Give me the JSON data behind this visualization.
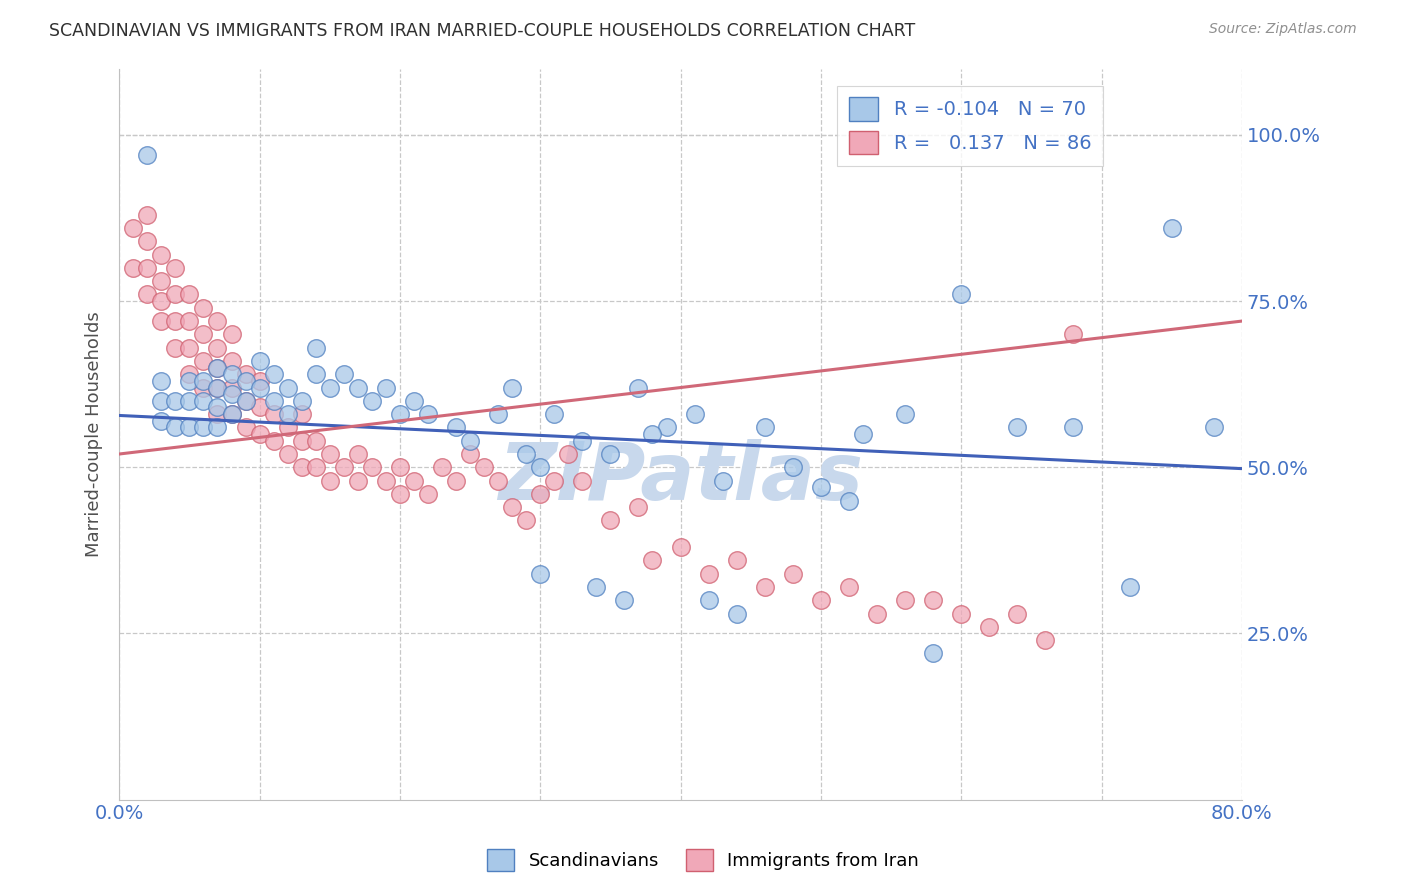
{
  "title": "SCANDINAVIAN VS IMMIGRANTS FROM IRAN MARRIED-COUPLE HOUSEHOLDS CORRELATION CHART",
  "source": "Source: ZipAtlas.com",
  "ylabel": "Married-couple Households",
  "ytick_labels": [
    "25.0%",
    "50.0%",
    "75.0%",
    "100.0%"
  ],
  "ytick_values": [
    0.25,
    0.5,
    0.75,
    1.0
  ],
  "blue_color": "#A8C8E8",
  "pink_color": "#F0A8B8",
  "blue_edge_color": "#5080C0",
  "pink_edge_color": "#D06070",
  "blue_line_color": "#4060B8",
  "pink_line_color": "#D06878",
  "title_color": "#303030",
  "source_color": "#909090",
  "axis_label_color": "#4472C4",
  "watermark_color": "#C8D8EC",
  "xmin": 0.0,
  "xmax": 0.8,
  "ymin": 0.0,
  "ymax": 1.1,
  "blue_line_x0": 0.0,
  "blue_line_y0": 0.578,
  "blue_line_x1": 0.8,
  "blue_line_y1": 0.498,
  "pink_line_x0": 0.0,
  "pink_line_y0": 0.52,
  "pink_line_x1": 0.8,
  "pink_line_y1": 0.72,
  "blue_scatter_x": [
    0.02,
    0.03,
    0.03,
    0.03,
    0.04,
    0.04,
    0.05,
    0.05,
    0.05,
    0.06,
    0.06,
    0.06,
    0.07,
    0.07,
    0.07,
    0.07,
    0.08,
    0.08,
    0.08,
    0.09,
    0.09,
    0.1,
    0.1,
    0.11,
    0.11,
    0.12,
    0.12,
    0.13,
    0.14,
    0.14,
    0.15,
    0.16,
    0.17,
    0.18,
    0.19,
    0.2,
    0.21,
    0.22,
    0.24,
    0.25,
    0.27,
    0.28,
    0.29,
    0.3,
    0.31,
    0.33,
    0.35,
    0.37,
    0.39,
    0.41,
    0.43,
    0.46,
    0.48,
    0.5,
    0.53,
    0.56,
    0.6,
    0.64,
    0.68,
    0.72,
    0.75,
    0.78,
    0.3,
    0.34,
    0.36,
    0.38,
    0.42,
    0.44,
    0.52,
    0.58
  ],
  "blue_scatter_y": [
    0.97,
    0.57,
    0.6,
    0.63,
    0.56,
    0.6,
    0.56,
    0.6,
    0.63,
    0.56,
    0.6,
    0.63,
    0.56,
    0.59,
    0.62,
    0.65,
    0.58,
    0.61,
    0.64,
    0.6,
    0.63,
    0.62,
    0.66,
    0.6,
    0.64,
    0.58,
    0.62,
    0.6,
    0.64,
    0.68,
    0.62,
    0.64,
    0.62,
    0.6,
    0.62,
    0.58,
    0.6,
    0.58,
    0.56,
    0.54,
    0.58,
    0.62,
    0.52,
    0.5,
    0.58,
    0.54,
    0.52,
    0.62,
    0.56,
    0.58,
    0.48,
    0.56,
    0.5,
    0.47,
    0.55,
    0.58,
    0.76,
    0.56,
    0.56,
    0.32,
    0.86,
    0.56,
    0.34,
    0.32,
    0.3,
    0.55,
    0.3,
    0.28,
    0.45,
    0.22
  ],
  "pink_scatter_x": [
    0.01,
    0.01,
    0.02,
    0.02,
    0.02,
    0.02,
    0.03,
    0.03,
    0.03,
    0.03,
    0.04,
    0.04,
    0.04,
    0.04,
    0.05,
    0.05,
    0.05,
    0.05,
    0.06,
    0.06,
    0.06,
    0.06,
    0.07,
    0.07,
    0.07,
    0.07,
    0.07,
    0.08,
    0.08,
    0.08,
    0.08,
    0.09,
    0.09,
    0.09,
    0.1,
    0.1,
    0.1,
    0.11,
    0.11,
    0.12,
    0.12,
    0.13,
    0.13,
    0.13,
    0.14,
    0.14,
    0.15,
    0.15,
    0.16,
    0.17,
    0.17,
    0.18,
    0.19,
    0.2,
    0.2,
    0.21,
    0.22,
    0.23,
    0.24,
    0.25,
    0.26,
    0.27,
    0.28,
    0.29,
    0.3,
    0.31,
    0.32,
    0.33,
    0.35,
    0.37,
    0.38,
    0.4,
    0.42,
    0.44,
    0.46,
    0.48,
    0.5,
    0.52,
    0.54,
    0.56,
    0.58,
    0.6,
    0.62,
    0.64,
    0.66,
    0.68
  ],
  "pink_scatter_y": [
    0.8,
    0.86,
    0.76,
    0.8,
    0.84,
    0.88,
    0.72,
    0.75,
    0.78,
    0.82,
    0.68,
    0.72,
    0.76,
    0.8,
    0.64,
    0.68,
    0.72,
    0.76,
    0.62,
    0.66,
    0.7,
    0.74,
    0.58,
    0.62,
    0.65,
    0.68,
    0.72,
    0.58,
    0.62,
    0.66,
    0.7,
    0.56,
    0.6,
    0.64,
    0.55,
    0.59,
    0.63,
    0.54,
    0.58,
    0.52,
    0.56,
    0.5,
    0.54,
    0.58,
    0.5,
    0.54,
    0.48,
    0.52,
    0.5,
    0.48,
    0.52,
    0.5,
    0.48,
    0.46,
    0.5,
    0.48,
    0.46,
    0.5,
    0.48,
    0.52,
    0.5,
    0.48,
    0.44,
    0.42,
    0.46,
    0.48,
    0.52,
    0.48,
    0.42,
    0.44,
    0.36,
    0.38,
    0.34,
    0.36,
    0.32,
    0.34,
    0.3,
    0.32,
    0.28,
    0.3,
    0.3,
    0.28,
    0.26,
    0.28,
    0.24,
    0.7
  ]
}
